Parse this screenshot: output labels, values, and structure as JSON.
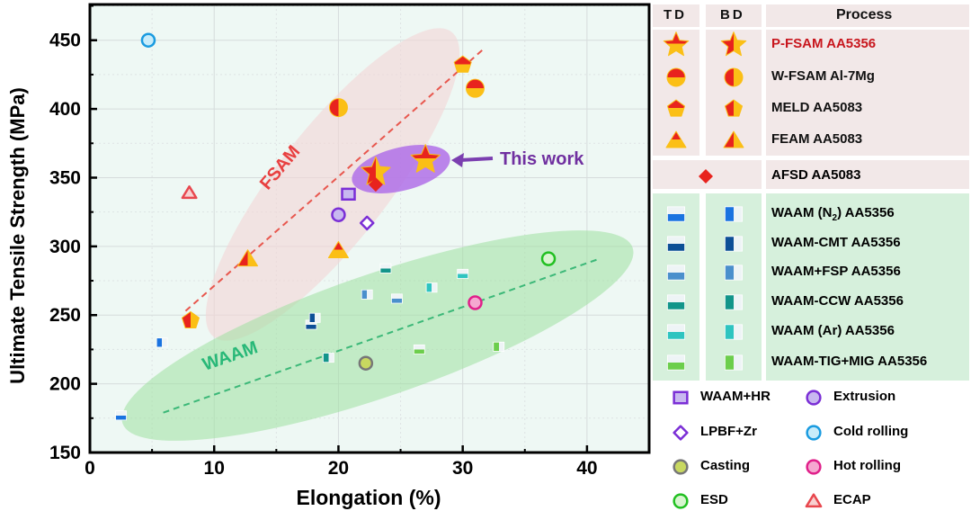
{
  "chart_data": {
    "type": "scatter",
    "xlabel": "Elongation (%)",
    "ylabel": "Ultimate Tensile Strength (MPa)",
    "xlim": [
      0,
      45
    ],
    "ylim": [
      150,
      476
    ],
    "xticks": [
      0,
      10,
      20,
      30,
      40
    ],
    "yticks": [
      150,
      200,
      250,
      300,
      350,
      400,
      450
    ],
    "grid": true,
    "annotations": {
      "this_work": "This work",
      "fsam": "FSAM",
      "waam": "WAAM"
    },
    "trend_lines": [
      {
        "group": "FSAM",
        "color": "#e8574e",
        "from": [
          7.7,
          253
        ],
        "to": [
          31.6,
          443
        ]
      },
      {
        "group": "WAAM",
        "color": "#3cb878",
        "from": [
          5.9,
          179
        ],
        "to": [
          41,
          291
        ]
      }
    ],
    "legend_headers": {
      "td": "TD",
      "bd": "BD",
      "process": "Process"
    },
    "series": [
      {
        "name": "P-FSAM  AA5356",
        "marker": "star",
        "color": "#e8231e",
        "color2": "#fbbf16",
        "group": "fsam",
        "label_color": "#c8161d",
        "td": [
          [
            27,
            363
          ]
        ],
        "bd": [
          [
            23,
            354
          ]
        ]
      },
      {
        "name": "W-FSAM  Al-7Mg",
        "marker": "circle",
        "color": "#e8231e",
        "color2": "#fbbf16",
        "group": "fsam",
        "td": [
          [
            31,
            415
          ]
        ],
        "bd": [
          [
            20,
            401
          ]
        ]
      },
      {
        "name": "MELD  AA5083",
        "marker": "pentagon",
        "color": "#e8231e",
        "color2": "#fbbf16",
        "group": "fsam",
        "td": [
          [
            30,
            432
          ]
        ],
        "bd": [
          [
            8.1,
            246
          ]
        ]
      },
      {
        "name": "FEAM  AA5083",
        "marker": "triangle",
        "color": "#e8231e",
        "color2": "#fbbf16",
        "group": "fsam",
        "td": [
          [
            20,
            297
          ]
        ],
        "bd": [
          [
            12.7,
            291
          ]
        ]
      },
      {
        "name": "AFSD  AA5083",
        "marker": "diamond",
        "color": "#e8231e",
        "group": "afsd",
        "points": [
          [
            23,
            345
          ]
        ]
      },
      {
        "name": "WAAM (N2)  AA5356",
        "marker": "square",
        "color": "#1a73e0",
        "group": "waam",
        "td": [
          [
            2.5,
            177
          ]
        ],
        "bd": [
          [
            5.8,
            230
          ]
        ]
      },
      {
        "name": "WAAM-CMT  AA5356",
        "marker": "square",
        "color": "#0d4f96",
        "group": "waam",
        "td": [
          [
            17.8,
            243
          ]
        ],
        "bd": [
          [
            18.1,
            248
          ]
        ]
      },
      {
        "name": "WAAM+FSP  AA5356",
        "marker": "square",
        "color": "#4a8fcc",
        "group": "waam",
        "td": [
          [
            24.7,
            262
          ]
        ],
        "bd": [
          [
            22.3,
            265
          ]
        ]
      },
      {
        "name": "WAAM-CCW  AA5356",
        "marker": "square",
        "color": "#12958a",
        "group": "waam",
        "td": [
          [
            23.8,
            284
          ]
        ],
        "bd": [
          [
            19.2,
            219
          ]
        ]
      },
      {
        "name": "WAAM (Ar)  AA5356",
        "marker": "square",
        "color": "#2ec4c0",
        "group": "waam",
        "td": [
          [
            30,
            280
          ]
        ],
        "bd": [
          [
            27.5,
            270
          ]
        ]
      },
      {
        "name": "WAAM-TIG+MIG AA5356",
        "marker": "square",
        "color": "#6cce4c",
        "group": "waam",
        "td": [
          [
            26.5,
            225
          ]
        ],
        "bd": [
          [
            32.9,
            227
          ]
        ]
      },
      {
        "name": "WAAM+HR",
        "marker": "osquare",
        "color": "#7b2fd6",
        "fill": "#c8b8f0",
        "group": "other",
        "points": [
          [
            20.8,
            338
          ]
        ]
      },
      {
        "name": "Extrusion",
        "marker": "ocircle",
        "color": "#7b2fd6",
        "fill": "#c8b8f0",
        "group": "other",
        "points": [
          [
            20,
            323
          ]
        ]
      },
      {
        "name": "LPBF+Zr",
        "marker": "odiamond",
        "color": "#7b2fd6",
        "fill": "#ffffff",
        "group": "other",
        "points": [
          [
            22.3,
            317
          ]
        ]
      },
      {
        "name": "Cold rolling",
        "marker": "ocircle",
        "color": "#1a9be0",
        "fill": "#c8ecfa",
        "group": "other",
        "points": [
          [
            4.7,
            450
          ]
        ]
      },
      {
        "name": "Casting",
        "marker": "ocircle",
        "color": "#777777",
        "fill": "#c8d860",
        "group": "other",
        "points": [
          [
            22.2,
            215
          ]
        ]
      },
      {
        "name": "Hot rolling",
        "marker": "ocircle",
        "color": "#e0208a",
        "fill": "#f5a8d0",
        "group": "other",
        "points": [
          [
            31,
            259
          ]
        ]
      },
      {
        "name": "ESD",
        "marker": "ocircle",
        "color": "#22c022",
        "fill": "#d8f5d0",
        "group": "other",
        "points": [
          [
            36.9,
            291
          ]
        ]
      },
      {
        "name": "ECAP",
        "marker": "otriangle",
        "color": "#e8474e",
        "fill": "#f8d0d0",
        "group": "other",
        "points": [
          [
            8,
            339
          ]
        ]
      }
    ]
  }
}
